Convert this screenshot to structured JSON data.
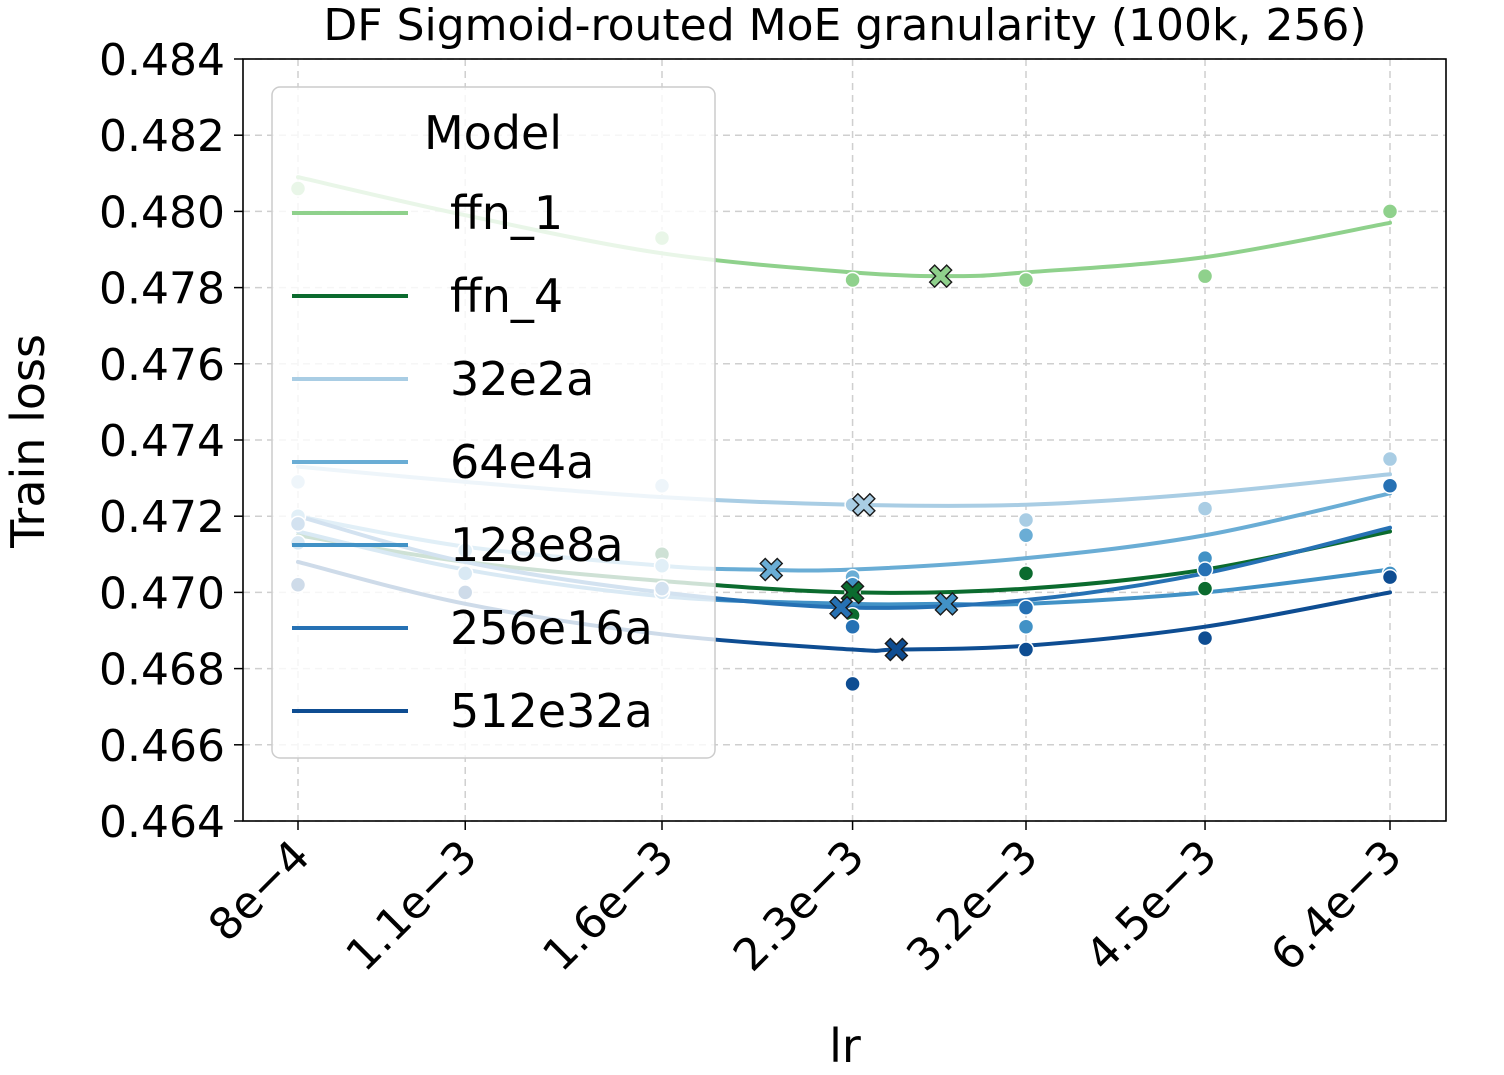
{
  "chart_data": {
    "type": "line",
    "title": "DF Sigmoid-routed MoE granularity (100k, 256)",
    "xlabel": "lr",
    "ylabel": "Train loss",
    "x_scale": "log",
    "x_ticks": [
      0.0008,
      0.0011,
      0.0016,
      0.0023,
      0.0032,
      0.0045,
      0.0064
    ],
    "x_tick_labels": [
      "8e−4",
      "1.1e−3",
      "1.6e−3",
      "2.3e−3",
      "3.2e−3",
      "4.5e−3",
      "6.4e−3"
    ],
    "y_ticks": [
      0.464,
      0.466,
      0.468,
      0.47,
      0.472,
      0.474,
      0.476,
      0.478,
      0.48,
      0.482,
      0.484
    ],
    "y_tick_labels": [
      "0.464",
      "0.466",
      "0.468",
      "0.470",
      "0.472",
      "0.474",
      "0.476",
      "0.478",
      "0.480",
      "0.482",
      "0.484"
    ],
    "ylim": [
      0.464,
      0.484
    ],
    "grid": true,
    "legend": {
      "title": "Model",
      "position": "top-left"
    },
    "series": [
      {
        "name": "ffn_1",
        "color": "#8fd18c",
        "points": [
          [
            0.0008,
            0.4806
          ],
          [
            0.0016,
            0.4793
          ],
          [
            0.0023,
            0.4782
          ],
          [
            0.0032,
            0.4782
          ],
          [
            0.0045,
            0.4783
          ],
          [
            0.0064,
            0.48
          ]
        ],
        "fit": [
          [
            0.0008,
            0.4809
          ],
          [
            0.0011,
            0.4799
          ],
          [
            0.0016,
            0.4789
          ],
          [
            0.0023,
            0.4784
          ],
          [
            0.0028,
            0.4783
          ],
          [
            0.0032,
            0.4784
          ],
          [
            0.0045,
            0.4788
          ],
          [
            0.0064,
            0.4797
          ]
        ],
        "min": [
          0.00272,
          0.4783
        ]
      },
      {
        "name": "ffn_4",
        "color": "#0b6b2e",
        "points": [
          [
            0.0016,
            0.471
          ],
          [
            0.0023,
            0.47
          ],
          [
            0.0023,
            0.4694
          ],
          [
            0.0032,
            0.4705
          ],
          [
            0.0045,
            0.4701
          ],
          [
            0.0064,
            0.4705
          ]
        ],
        "fit": [
          [
            0.0008,
            0.4715
          ],
          [
            0.0011,
            0.4708
          ],
          [
            0.0016,
            0.4703
          ],
          [
            0.0023,
            0.47
          ],
          [
            0.0032,
            0.4701
          ],
          [
            0.0045,
            0.4706
          ],
          [
            0.0064,
            0.4716
          ]
        ],
        "min": [
          0.0023,
          0.47
        ]
      },
      {
        "name": "32e2a",
        "color": "#a9cde4",
        "points": [
          [
            0.0008,
            0.4729
          ],
          [
            0.0016,
            0.4728
          ],
          [
            0.0023,
            0.4723
          ],
          [
            0.0032,
            0.4719
          ],
          [
            0.0045,
            0.4722
          ],
          [
            0.0064,
            0.4735
          ]
        ],
        "fit": [
          [
            0.0008,
            0.4733
          ],
          [
            0.0011,
            0.4729
          ],
          [
            0.0016,
            0.4725
          ],
          [
            0.0023,
            0.4723
          ],
          [
            0.0032,
            0.4723
          ],
          [
            0.0045,
            0.4726
          ],
          [
            0.0064,
            0.4731
          ]
        ],
        "min": [
          0.00235,
          0.4723
        ]
      },
      {
        "name": "64e4a",
        "color": "#6aadd5",
        "points": [
          [
            0.0008,
            0.472
          ],
          [
            0.0011,
            0.4711
          ],
          [
            0.0016,
            0.4707
          ],
          [
            0.0023,
            0.4704
          ],
          [
            0.0032,
            0.4715
          ],
          [
            0.0045,
            0.4708
          ],
          [
            0.0064,
            0.4728
          ]
        ],
        "fit": [
          [
            0.0008,
            0.472
          ],
          [
            0.0011,
            0.4712
          ],
          [
            0.0016,
            0.4707
          ],
          [
            0.0019,
            0.4706
          ],
          [
            0.0023,
            0.4706
          ],
          [
            0.0032,
            0.4709
          ],
          [
            0.0045,
            0.4715
          ],
          [
            0.0064,
            0.4726
          ]
        ],
        "min": [
          0.00197,
          0.4706
        ]
      },
      {
        "name": "128e8a",
        "color": "#4292c6",
        "points": [
          [
            0.0008,
            0.4713
          ],
          [
            0.0011,
            0.4705
          ],
          [
            0.0016,
            0.47
          ],
          [
            0.0023,
            0.4702
          ],
          [
            0.0032,
            0.4691
          ],
          [
            0.0045,
            0.4709
          ],
          [
            0.0064,
            0.4705
          ]
        ],
        "fit": [
          [
            0.0008,
            0.4716
          ],
          [
            0.0011,
            0.4706
          ],
          [
            0.0016,
            0.4699
          ],
          [
            0.0023,
            0.4697
          ],
          [
            0.0027,
            0.4697
          ],
          [
            0.0032,
            0.4697
          ],
          [
            0.0045,
            0.47
          ],
          [
            0.0064,
            0.4706
          ]
        ],
        "min": [
          0.00275,
          0.4697
        ]
      },
      {
        "name": "256e16a",
        "color": "#2671b4",
        "points": [
          [
            0.0008,
            0.4718
          ],
          [
            0.0016,
            0.4701
          ],
          [
            0.0023,
            0.4691
          ],
          [
            0.0032,
            0.4696
          ],
          [
            0.0045,
            0.4706
          ],
          [
            0.0064,
            0.4728
          ]
        ],
        "fit": [
          [
            0.0008,
            0.472
          ],
          [
            0.0011,
            0.4708
          ],
          [
            0.0016,
            0.47
          ],
          [
            0.0023,
            0.4696
          ],
          [
            0.0032,
            0.4698
          ],
          [
            0.0045,
            0.4705
          ],
          [
            0.0064,
            0.4717
          ]
        ],
        "min": [
          0.00225,
          0.4696
        ]
      },
      {
        "name": "512e32a",
        "color": "#0e4d92",
        "points": [
          [
            0.0008,
            0.4702
          ],
          [
            0.0011,
            0.47
          ],
          [
            0.0023,
            0.4676
          ],
          [
            0.0032,
            0.4685
          ],
          [
            0.0045,
            0.4688
          ],
          [
            0.0064,
            0.4704
          ]
        ],
        "fit": [
          [
            0.0008,
            0.4708
          ],
          [
            0.0011,
            0.4697
          ],
          [
            0.0016,
            0.4689
          ],
          [
            0.0023,
            0.4685
          ],
          [
            0.0025,
            0.4685
          ],
          [
            0.0032,
            0.4686
          ],
          [
            0.0045,
            0.4691
          ],
          [
            0.0064,
            0.47
          ]
        ],
        "min": [
          0.0025,
          0.4685
        ]
      }
    ]
  }
}
